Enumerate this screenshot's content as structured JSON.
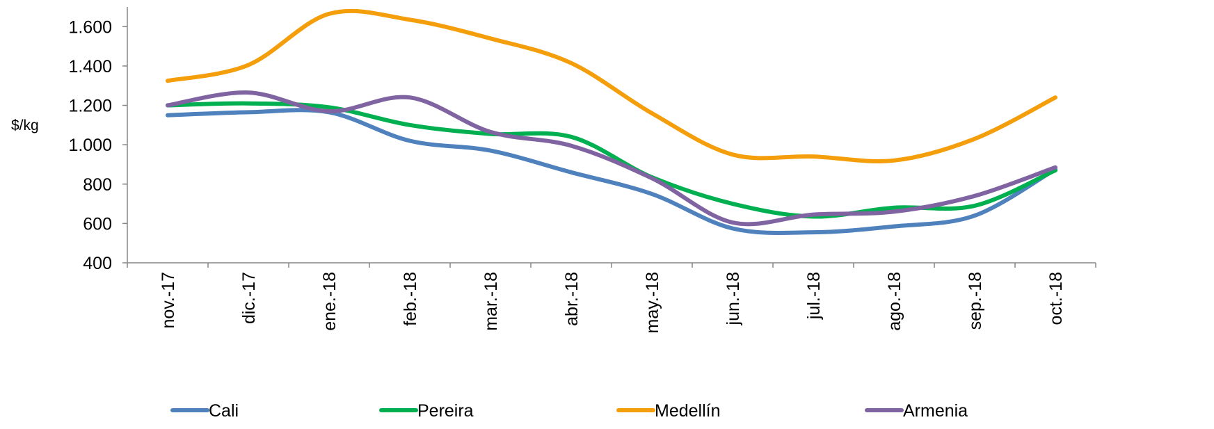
{
  "chart_data": {
    "type": "line",
    "title": "",
    "xlabel": "",
    "ylabel": "$/kg",
    "ylim": [
      400,
      1700
    ],
    "yticks": [
      400,
      600,
      800,
      1000,
      1200,
      1400,
      1600
    ],
    "ytick_labels": [
      "400",
      "600",
      "800",
      "1.000",
      "1.200",
      "1.400",
      "1.600"
    ],
    "grid": false,
    "legend_position": "bottom",
    "smooth": true,
    "categories": [
      "nov.-17",
      "dic.-17",
      "ene.-18",
      "feb.-18",
      "mar.-18",
      "abr.-18",
      "may.-18",
      "jun.-18",
      "jul.-18",
      "ago.-18",
      "sep.-18",
      "oct.-18"
    ],
    "series": [
      {
        "name": "Cali",
        "color": "#4F81BD",
        "values": [
          1150,
          1165,
          1165,
          1020,
          970,
          860,
          750,
          575,
          555,
          585,
          640,
          875
        ]
      },
      {
        "name": "Pereira",
        "color": "#00B050",
        "values": [
          1200,
          1210,
          1190,
          1100,
          1055,
          1040,
          835,
          700,
          635,
          680,
          690,
          870
        ]
      },
      {
        "name": "Medellín",
        "color": "#F59E0B",
        "values": [
          1325,
          1405,
          1665,
          1635,
          1540,
          1415,
          1160,
          950,
          940,
          920,
          1030,
          1240
        ]
      },
      {
        "name": "Armenia",
        "color": "#8064A2",
        "values": [
          1200,
          1265,
          1170,
          1240,
          1065,
          995,
          830,
          605,
          645,
          660,
          740,
          885
        ]
      }
    ]
  }
}
